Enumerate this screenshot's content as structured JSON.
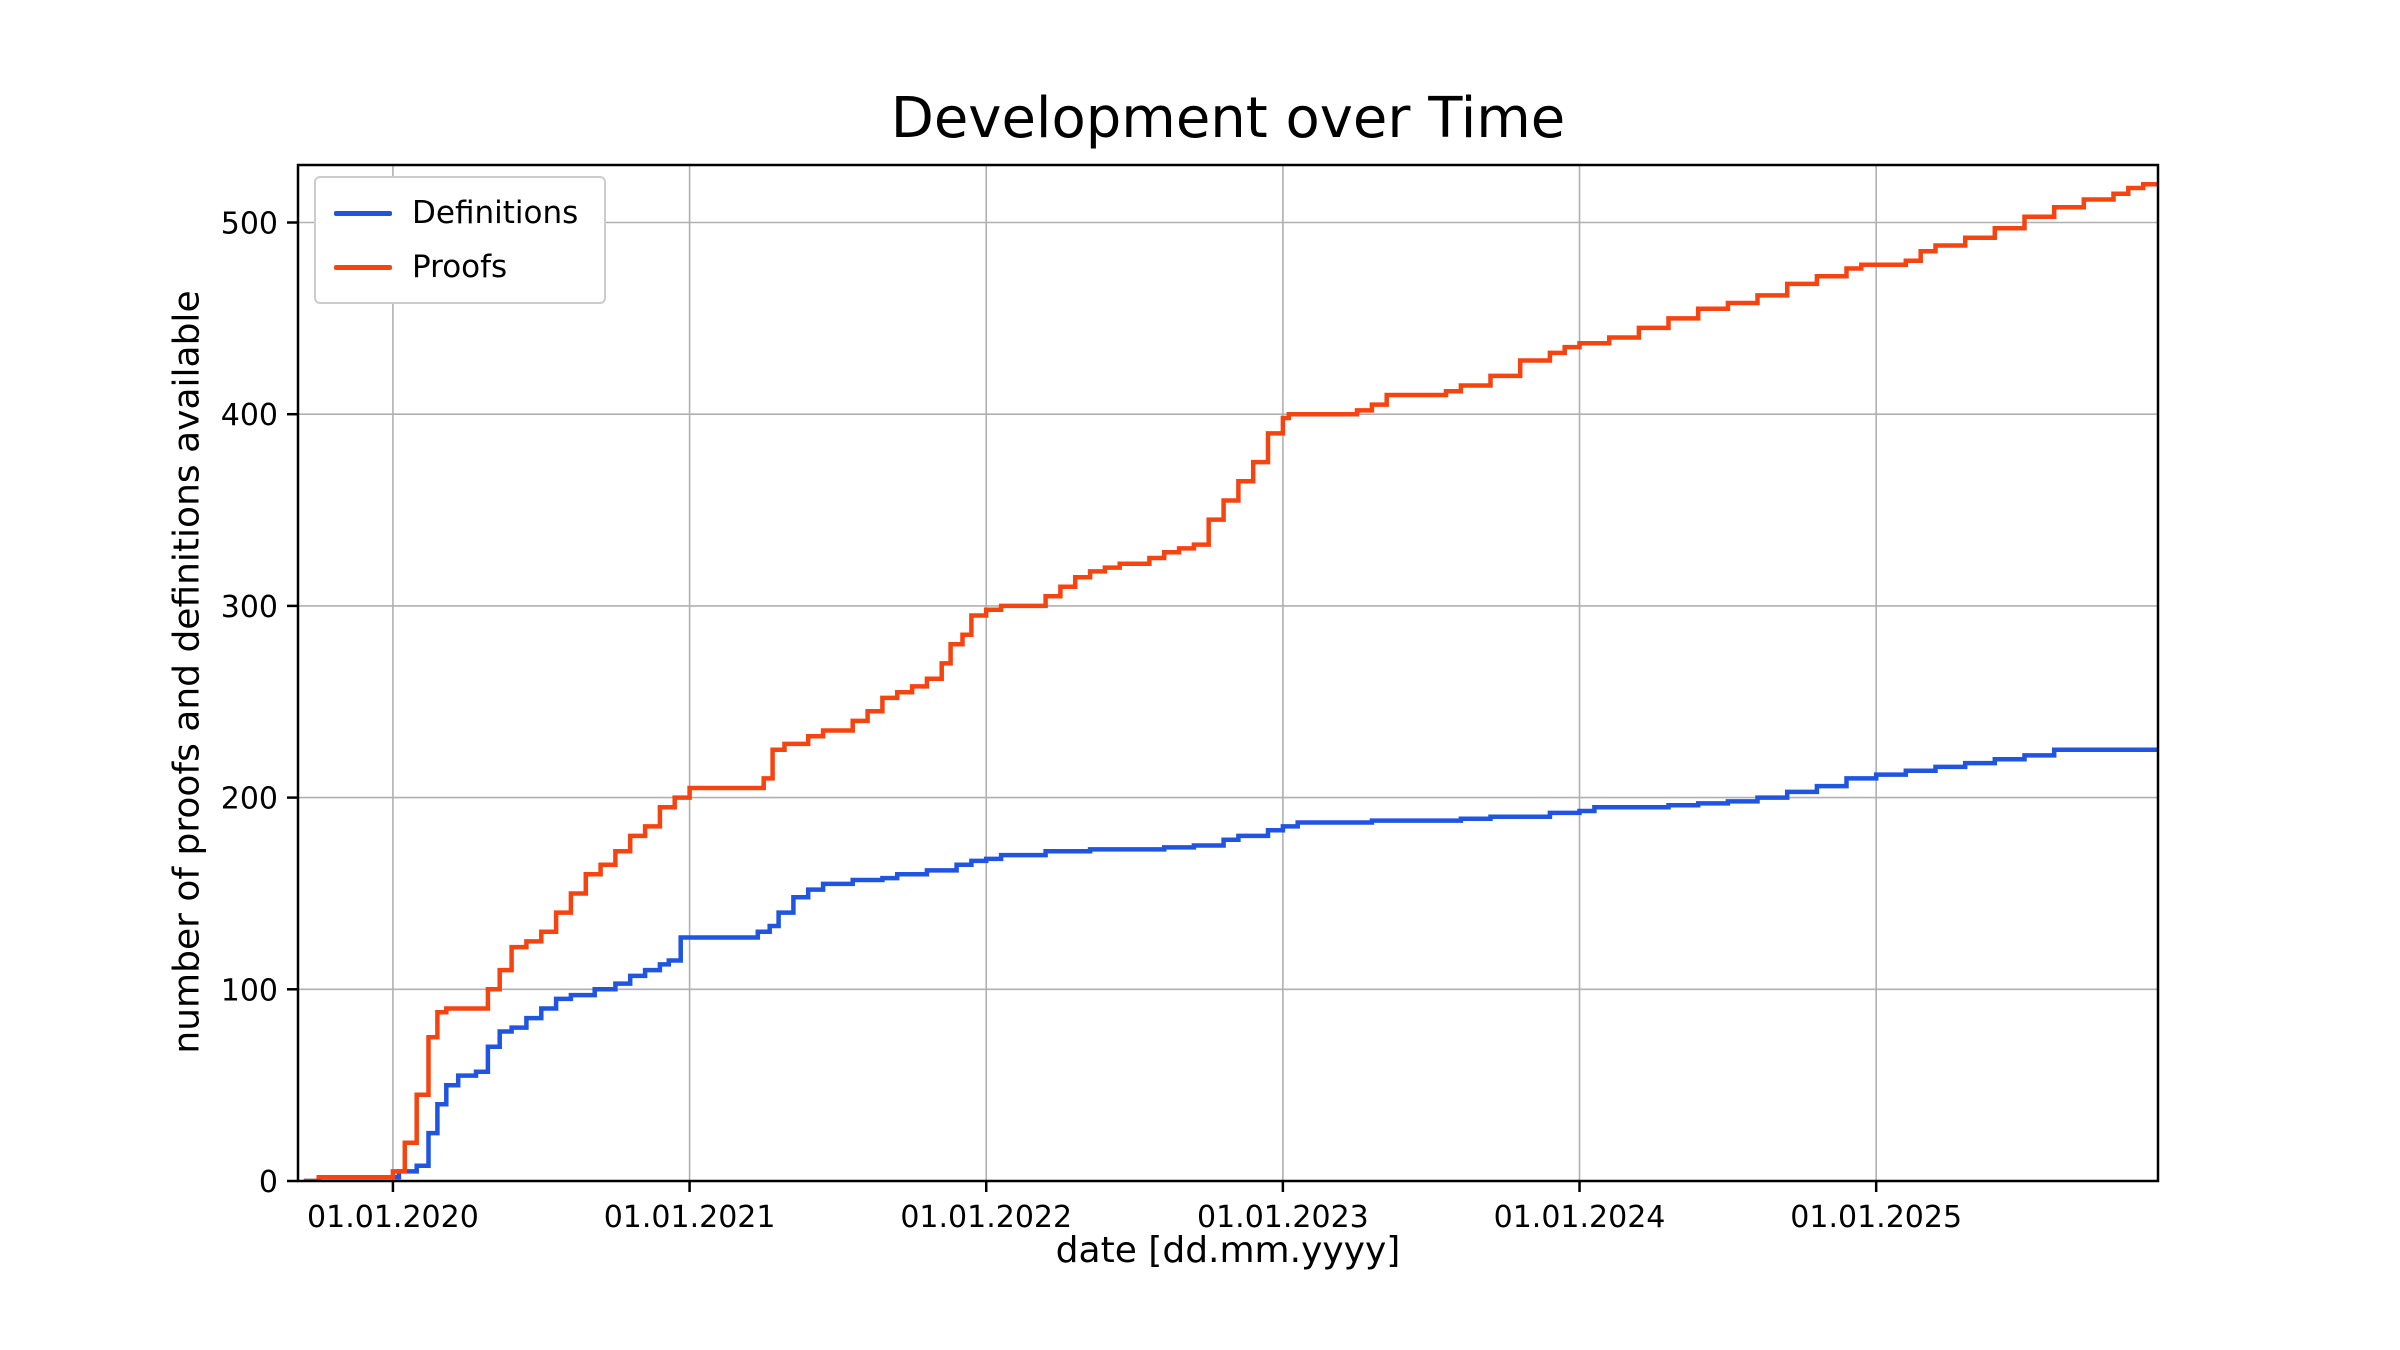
{
  "chart_data": {
    "type": "line",
    "title": "Development over Time",
    "xlabel": "date [dd.mm.yyyy]",
    "ylabel": "number of proofs and definitions available",
    "grid": true,
    "legend_position": "upper left",
    "step_mode": "post",
    "xlim": [
      2019.68,
      2025.95
    ],
    "ylim": [
      0,
      530
    ],
    "x_tick_values": [
      2020,
      2021,
      2022,
      2023,
      2024,
      2025
    ],
    "x_tick_labels": [
      "01.01.2020",
      "01.01.2021",
      "01.01.2022",
      "01.01.2023",
      "01.01.2024",
      "01.01.2025"
    ],
    "y_ticks": [
      0,
      100,
      200,
      300,
      400,
      500
    ],
    "series": [
      {
        "name": "Definitions",
        "color": "#1f55e0",
        "x": [
          2019.7,
          2019.75,
          2019.98,
          2020.02,
          2020.08,
          2020.12,
          2020.15,
          2020.18,
          2020.22,
          2020.28,
          2020.32,
          2020.36,
          2020.4,
          2020.45,
          2020.5,
          2020.55,
          2020.6,
          2020.68,
          2020.75,
          2020.8,
          2020.85,
          2020.9,
          2020.93,
          2020.97,
          2021.2,
          2021.23,
          2021.27,
          2021.3,
          2021.35,
          2021.4,
          2021.45,
          2021.55,
          2021.65,
          2021.7,
          2021.8,
          2021.9,
          2021.95,
          2022.0,
          2022.05,
          2022.2,
          2022.35,
          2022.6,
          2022.7,
          2022.8,
          2022.85,
          2022.95,
          2023.0,
          2023.05,
          2023.3,
          2023.6,
          2023.7,
          2023.9,
          2024.0,
          2024.05,
          2024.3,
          2024.4,
          2024.5,
          2024.6,
          2024.7,
          2024.8,
          2024.9,
          2025.0,
          2025.1,
          2025.2,
          2025.3,
          2025.4,
          2025.5,
          2025.6,
          2025.95
        ],
        "y": [
          0,
          2,
          2,
          5,
          8,
          25,
          40,
          50,
          55,
          57,
          70,
          78,
          80,
          85,
          90,
          95,
          97,
          100,
          103,
          107,
          110,
          113,
          115,
          127,
          127,
          130,
          133,
          140,
          148,
          152,
          155,
          157,
          158,
          160,
          162,
          165,
          167,
          168,
          170,
          172,
          173,
          174,
          175,
          178,
          180,
          183,
          185,
          187,
          188,
          189,
          190,
          192,
          193,
          195,
          196,
          197,
          198,
          200,
          203,
          206,
          210,
          212,
          214,
          216,
          218,
          220,
          222,
          225,
          225
        ]
      },
      {
        "name": "Proofs",
        "color": "#f64411",
        "x": [
          2019.7,
          2019.75,
          2019.95,
          2020.0,
          2020.04,
          2020.08,
          2020.12,
          2020.15,
          2020.18,
          2020.28,
          2020.32,
          2020.36,
          2020.4,
          2020.45,
          2020.5,
          2020.55,
          2020.6,
          2020.65,
          2020.7,
          2020.75,
          2020.8,
          2020.85,
          2020.9,
          2020.95,
          2021.0,
          2021.2,
          2021.25,
          2021.28,
          2021.32,
          2021.4,
          2021.45,
          2021.55,
          2021.6,
          2021.65,
          2021.7,
          2021.75,
          2021.8,
          2021.85,
          2021.88,
          2021.92,
          2021.95,
          2022.0,
          2022.05,
          2022.15,
          2022.2,
          2022.25,
          2022.3,
          2022.35,
          2022.4,
          2022.45,
          2022.55,
          2022.6,
          2022.65,
          2022.7,
          2022.75,
          2022.8,
          2022.85,
          2022.9,
          2022.95,
          2023.0,
          2023.02,
          2023.2,
          2023.25,
          2023.3,
          2023.35,
          2023.5,
          2023.55,
          2023.6,
          2023.7,
          2023.8,
          2023.9,
          2023.95,
          2024.0,
          2024.1,
          2024.2,
          2024.3,
          2024.4,
          2024.5,
          2024.6,
          2024.7,
          2024.8,
          2024.9,
          2024.95,
          2025.1,
          2025.15,
          2025.2,
          2025.3,
          2025.4,
          2025.5,
          2025.6,
          2025.7,
          2025.8,
          2025.85,
          2025.9,
          2025.95
        ],
        "y": [
          0,
          2,
          2,
          5,
          20,
          45,
          75,
          88,
          90,
          90,
          100,
          110,
          122,
          125,
          130,
          140,
          150,
          160,
          165,
          172,
          180,
          185,
          195,
          200,
          205,
          205,
          210,
          225,
          228,
          232,
          235,
          240,
          245,
          252,
          255,
          258,
          262,
          270,
          280,
          285,
          295,
          298,
          300,
          300,
          305,
          310,
          315,
          318,
          320,
          322,
          325,
          328,
          330,
          332,
          345,
          355,
          365,
          375,
          390,
          398,
          400,
          400,
          402,
          405,
          410,
          410,
          412,
          415,
          420,
          428,
          432,
          435,
          437,
          440,
          445,
          450,
          455,
          458,
          462,
          468,
          472,
          476,
          478,
          480,
          485,
          488,
          492,
          497,
          503,
          508,
          512,
          515,
          518,
          520,
          520
        ]
      }
    ]
  }
}
